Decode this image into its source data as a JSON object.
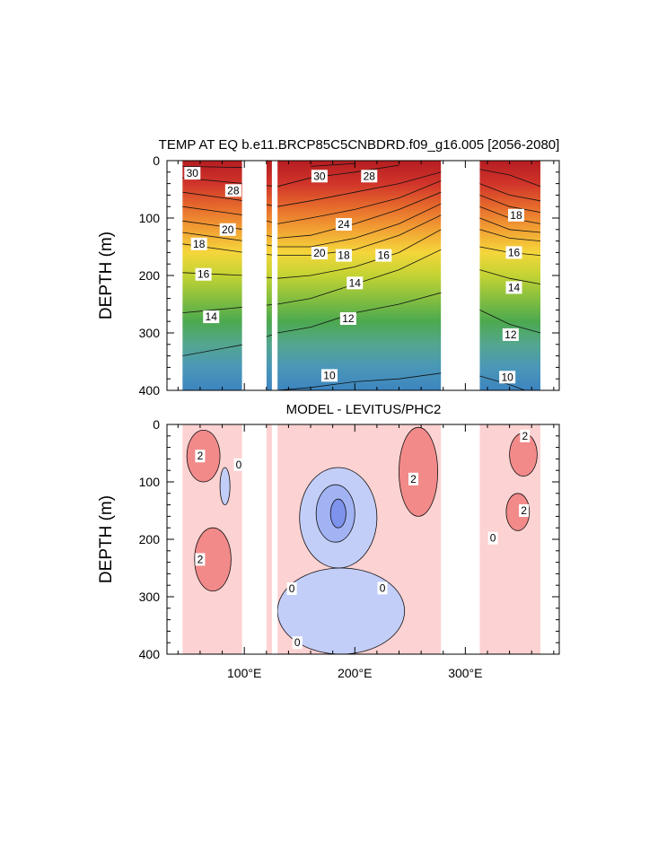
{
  "chart_data": [
    {
      "type": "heatmap",
      "title": "TEMP AT EQ b.e11.BRCP85C5CNBDRD.f09_g16.005 [2056-2080]",
      "ylabel": "DEPTH (m)",
      "xlim": [
        30,
        385
      ],
      "ylim": [
        400,
        0
      ],
      "y_ticks": [
        0,
        100,
        200,
        300,
        400
      ],
      "x_ticks": [
        100,
        200,
        300
      ],
      "x_tick_labels": [
        "",
        "",
        ""
      ],
      "land_gaps": [
        [
          98,
          120
        ],
        [
          125,
          130
        ],
        [
          278,
          313
        ]
      ],
      "ocean_ranges": [
        [
          44,
          98
        ],
        [
          120,
          125
        ],
        [
          130,
          278
        ],
        [
          313,
          368
        ]
      ],
      "isotherm_depths_m": {
        "x": [
          44,
          100,
          130,
          160,
          200,
          240,
          278,
          313,
          340,
          368
        ],
        "30": [
          10,
          12,
          null,
          10,
          5,
          null,
          null,
          null,
          null,
          null
        ],
        "28": [
          30,
          40,
          45,
          30,
          20,
          8,
          null,
          15,
          25,
          45
        ],
        "26": [
          55,
          70,
          80,
          70,
          55,
          40,
          20,
          40,
          60,
          70
        ],
        "24": [
          80,
          95,
          110,
          100,
          85,
          65,
          35,
          60,
          80,
          90
        ],
        "22": [
          105,
          120,
          135,
          130,
          110,
          85,
          55,
          80,
          100,
          110
        ],
        "20": [
          125,
          140,
          150,
          150,
          135,
          110,
          75,
          100,
          120,
          125
        ],
        "18": [
          145,
          160,
          165,
          165,
          155,
          130,
          95,
          120,
          135,
          140
        ],
        "16": [
          195,
          200,
          205,
          200,
          185,
          160,
          120,
          150,
          160,
          165
        ],
        "14": [
          265,
          255,
          250,
          240,
          215,
          190,
          155,
          190,
          205,
          215
        ],
        "12": [
          340,
          320,
          300,
          290,
          265,
          250,
          230,
          260,
          285,
          300
        ],
        "10": [
          430,
          420,
          400,
          395,
          385,
          380,
          370,
          375,
          390,
          410
        ]
      },
      "contour_labels": [
        {
          "text": "30",
          "x": 53,
          "depth": 22
        },
        {
          "text": "28",
          "x": 90,
          "depth": 52
        },
        {
          "text": "20",
          "x": 85,
          "depth": 120
        },
        {
          "text": "18",
          "x": 59,
          "depth": 145
        },
        {
          "text": "16",
          "x": 63,
          "depth": 198
        },
        {
          "text": "14",
          "x": 70,
          "depth": 272
        },
        {
          "text": "30",
          "x": 168,
          "depth": 27
        },
        {
          "text": "28",
          "x": 213,
          "depth": 27
        },
        {
          "text": "24",
          "x": 190,
          "depth": 111
        },
        {
          "text": "20",
          "x": 168,
          "depth": 161
        },
        {
          "text": "18",
          "x": 190,
          "depth": 165
        },
        {
          "text": "16",
          "x": 226,
          "depth": 165
        },
        {
          "text": "14",
          "x": 200,
          "depth": 213
        },
        {
          "text": "12",
          "x": 194,
          "depth": 275
        },
        {
          "text": "10",
          "x": 177,
          "depth": 374
        },
        {
          "text": "18",
          "x": 346,
          "depth": 95
        },
        {
          "text": "16",
          "x": 344,
          "depth": 160
        },
        {
          "text": "14",
          "x": 344,
          "depth": 221
        },
        {
          "text": "12",
          "x": 341,
          "depth": 303
        },
        {
          "text": "10",
          "x": 338,
          "depth": 377
        }
      ]
    },
    {
      "type": "heatmap",
      "title": "MODEL - LEVITUS/PHC2",
      "ylabel": "DEPTH (m)",
      "xlim": [
        30,
        385
      ],
      "ylim": [
        400,
        0
      ],
      "y_ticks": [
        0,
        100,
        200,
        300,
        400
      ],
      "x_ticks": [
        100,
        200,
        300
      ],
      "x_tick_labels": [
        "100°E",
        "200°E",
        "300°E"
      ],
      "land_gaps": [
        [
          98,
          120
        ],
        [
          125,
          130
        ],
        [
          278,
          313
        ]
      ],
      "ocean_ranges": [
        [
          44,
          98
        ],
        [
          120,
          125
        ],
        [
          130,
          278
        ],
        [
          313,
          368
        ]
      ],
      "diff_regions": [
        {
          "level": "pos_strong",
          "x": [
            48,
            78
          ],
          "depth": [
            10,
            100
          ]
        },
        {
          "level": "pos_strong",
          "x": [
            55,
            88
          ],
          "depth": [
            180,
            290
          ]
        },
        {
          "level": "pos_strong",
          "x": [
            240,
            275
          ],
          "depth": [
            5,
            160
          ]
        },
        {
          "level": "pos_strong",
          "x": [
            340,
            365
          ],
          "depth": [
            15,
            90
          ]
        },
        {
          "level": "pos_strong",
          "x": [
            337,
            358
          ],
          "depth": [
            120,
            185
          ]
        },
        {
          "level": "neg_weak",
          "x": [
            150,
            220
          ],
          "depth": [
            75,
            250
          ]
        },
        {
          "level": "neg_weak",
          "x": [
            130,
            245
          ],
          "depth": [
            250,
            400
          ]
        },
        {
          "level": "neg_weak",
          "x": [
            78,
            87
          ],
          "depth": [
            75,
            140
          ]
        },
        {
          "level": "neg_mid",
          "x": [
            165,
            200
          ],
          "depth": [
            105,
            205
          ]
        },
        {
          "level": "neg_strong",
          "x": [
            178,
            192
          ],
          "depth": [
            130,
            180
          ]
        }
      ],
      "contour_labels": [
        {
          "text": "2",
          "x": 60,
          "depth": 55
        },
        {
          "text": "0",
          "x": 95,
          "depth": 70
        },
        {
          "text": "2",
          "x": 60,
          "depth": 235
        },
        {
          "text": "2",
          "x": 253,
          "depth": 95
        },
        {
          "text": "0",
          "x": 143,
          "depth": 286
        },
        {
          "text": "0",
          "x": 225,
          "depth": 285
        },
        {
          "text": "0",
          "x": 148,
          "depth": 380
        },
        {
          "text": "2",
          "x": 354,
          "depth": 20
        },
        {
          "text": "2",
          "x": 353,
          "depth": 150
        },
        {
          "text": "0",
          "x": 325,
          "depth": 198
        }
      ]
    }
  ],
  "colors": {
    "temp_scale": [
      "#3d85c0",
      "#4a97b8",
      "#54a68f",
      "#4ca94f",
      "#86bf3f",
      "#c3d333",
      "#f4d63b",
      "#f2a133",
      "#e66a2c",
      "#d0342a",
      "#b51d21"
    ],
    "diff_pos_weak": "#fdd2d2",
    "diff_pos_mid": "#f9b0b0",
    "diff_pos_strong": "#f28a8a",
    "diff_neg_weak": "#c3cef8",
    "diff_neg_mid": "#a2b3f4",
    "diff_neg_strong": "#7e93ec"
  }
}
